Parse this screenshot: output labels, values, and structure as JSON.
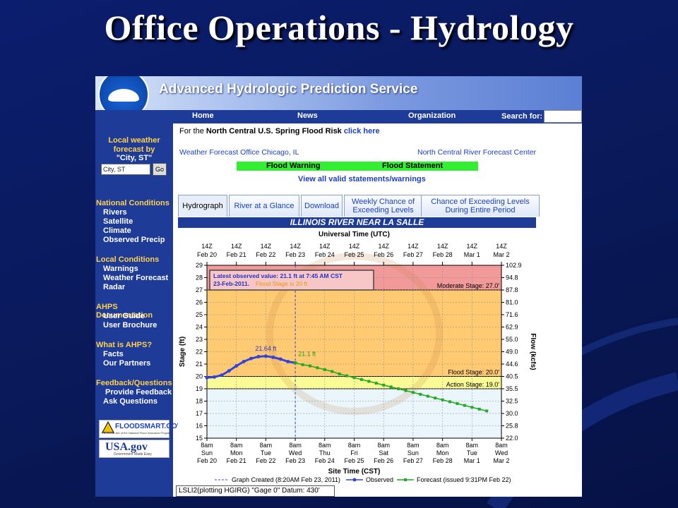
{
  "slide": {
    "title": "Office Operations - Hydrology"
  },
  "banner": {
    "title": "Advanced Hydrologic Prediction Service",
    "logo_text": "NOAA"
  },
  "nav": {
    "home": "Home",
    "news": "News",
    "organization": "Organization",
    "search_label": "Search for:"
  },
  "sidebar": {
    "forecast_title_1": "Local weather",
    "forecast_title_2": "forecast by",
    "forecast_title_3": "\"City, ST\"",
    "city_placeholder": "City, ST",
    "go": "Go",
    "national_head": "National Conditions",
    "national": [
      "Rivers",
      "Satellite",
      "Climate",
      "Observed Precip"
    ],
    "local_head": "Local Conditions",
    "local": [
      "Warnings",
      "Weather Forecast",
      "Radar"
    ],
    "docs_head": "AHPS Documentation",
    "docs": [
      "User Guide",
      "User Brochure"
    ],
    "what_head": "What is AHPS?",
    "what": [
      "Facts",
      "Our Partners"
    ],
    "feedback_head": "Feedback/Questions",
    "feedback": [
      "Provide Feedback",
      "Ask Questions"
    ],
    "floodsmart": "FLOODSMART.GOV",
    "floodsmart_sub": "The official site of the National Flood Insurance Program",
    "usagov": "USA.gov",
    "usagov_sub": "Government Made Easy"
  },
  "main": {
    "spring_prefix": "For the ",
    "spring_bold": "North Central U.S. Spring Flood Risk",
    "spring_link": "click here",
    "wfo": "Weather Forecast Office Chicago, IL",
    "rfc": "North Central River Forecast Center",
    "flood_warning": "Flood Warning",
    "flood_statement": "Flood Statement",
    "view_all": "View all valid statements/warnings",
    "tabs": [
      "Hydrograph",
      "River at a Glance",
      "Download",
      "Weekly Chance of Exceeding Levels",
      "Chance of Exceeding Levels During Entire Period"
    ],
    "river_title": "ILLINOIS RIVER NEAR LA SALLE",
    "bottom_note": "LSLI2(plotting HGIRG) \"Gage 0\" Datum: 430'"
  },
  "chart_data": {
    "type": "line",
    "title": "",
    "top_axis_label": "Universal Time (UTC)",
    "top_ticks": [
      [
        "14Z",
        "Feb 20"
      ],
      [
        "14Z",
        "Feb 21"
      ],
      [
        "14Z",
        "Feb 22"
      ],
      [
        "14Z",
        "Feb 23"
      ],
      [
        "14Z",
        "Feb 24"
      ],
      [
        "14Z",
        "Feb 25"
      ],
      [
        "14Z",
        "Feb 26"
      ],
      [
        "14Z",
        "Feb 27"
      ],
      [
        "14Z",
        "Feb 28"
      ],
      [
        "14Z",
        "Mar 1"
      ],
      [
        "14Z",
        "Mar 2"
      ]
    ],
    "bottom_ticks": [
      [
        "8am",
        "Sun",
        "Feb 20"
      ],
      [
        "8am",
        "Mon",
        "Feb 21"
      ],
      [
        "8am",
        "Tue",
        "Feb 22"
      ],
      [
        "8am",
        "Wed",
        "Feb 23"
      ],
      [
        "8am",
        "Thu",
        "Feb 24"
      ],
      [
        "8am",
        "Fri",
        "Feb 25"
      ],
      [
        "8am",
        "Sat",
        "Feb 26"
      ],
      [
        "8am",
        "Sun",
        "Feb 27"
      ],
      [
        "8am",
        "Mon",
        "Feb 28"
      ],
      [
        "8am",
        "Tue",
        "Mar 1"
      ],
      [
        "8am",
        "Wed",
        "Mar 2"
      ]
    ],
    "xlabel": "Site Time (CST)",
    "ylabel": "Stage (ft)",
    "y2label": "Flow (kcfs)",
    "ylim": [
      15,
      29
    ],
    "y_ticks": [
      15,
      16,
      17,
      18,
      19,
      20,
      21,
      22,
      23,
      24,
      25,
      26,
      27,
      28,
      29
    ],
    "y2_ticks": [
      "22.0",
      "25.8",
      "30.0",
      "32.5",
      "35.5",
      "40.5",
      "44.6",
      "49.0",
      "55.0",
      "62.9",
      "71.6",
      "81.0",
      "87.8",
      "94.8",
      "102.9"
    ],
    "x_range_days": [
      0,
      10
    ],
    "stages": [
      {
        "name": "Moderate Stage: 27.0'",
        "value": 27.0,
        "color": "#f29a9a"
      },
      {
        "name": "Flood Stage: 20.0'",
        "value": 20.0,
        "color": "#ffca72"
      },
      {
        "name": "Action Stage: 19.0'",
        "value": 19.0,
        "color": "#fafa96"
      }
    ],
    "annotation_line1": "Latest observed value: 21.1 ft at 7:45 AM CST",
    "annotation_line2_date": "23-Feb-2011.",
    "annotation_line2_flood": "Flood Stage is 20 ft",
    "peak_label": "21.64 ft",
    "current_label": "21.1 ft",
    "graph_created_day": 3.0,
    "series": [
      {
        "name": "Observed",
        "color": "#3344dd",
        "x": [
          0,
          0.25,
          0.5,
          0.75,
          1.0,
          1.25,
          1.5,
          1.75,
          2.0,
          2.25,
          2.5,
          2.75,
          3.0
        ],
        "y": [
          19.9,
          19.95,
          20.1,
          20.45,
          20.85,
          21.2,
          21.45,
          21.6,
          21.64,
          21.55,
          21.4,
          21.2,
          21.1
        ]
      },
      {
        "name": "Forecast (issued 9:31PM Feb 22)",
        "color": "#22aa22",
        "x": [
          3.0,
          3.25,
          3.5,
          3.75,
          4.0,
          4.25,
          4.5,
          4.75,
          5.0,
          5.25,
          5.5,
          5.75,
          6.0,
          6.25,
          6.5,
          6.75,
          7.0,
          7.25,
          7.5,
          7.75,
          8.0,
          8.25,
          8.5,
          8.75,
          9.0,
          9.25,
          9.5
        ],
        "y": [
          21.1,
          20.95,
          20.85,
          20.7,
          20.55,
          20.4,
          20.2,
          20.05,
          19.9,
          19.75,
          19.6,
          19.45,
          19.3,
          19.15,
          19.0,
          18.85,
          18.7,
          18.55,
          18.4,
          18.25,
          18.1,
          17.95,
          17.8,
          17.65,
          17.5,
          17.35,
          17.2
        ]
      }
    ],
    "legend": {
      "created": "Graph Created (8:20AM Feb 23, 2011)",
      "observed": "Observed",
      "forecast": "Forecast (issued 9:31PM Feb 22)"
    }
  }
}
